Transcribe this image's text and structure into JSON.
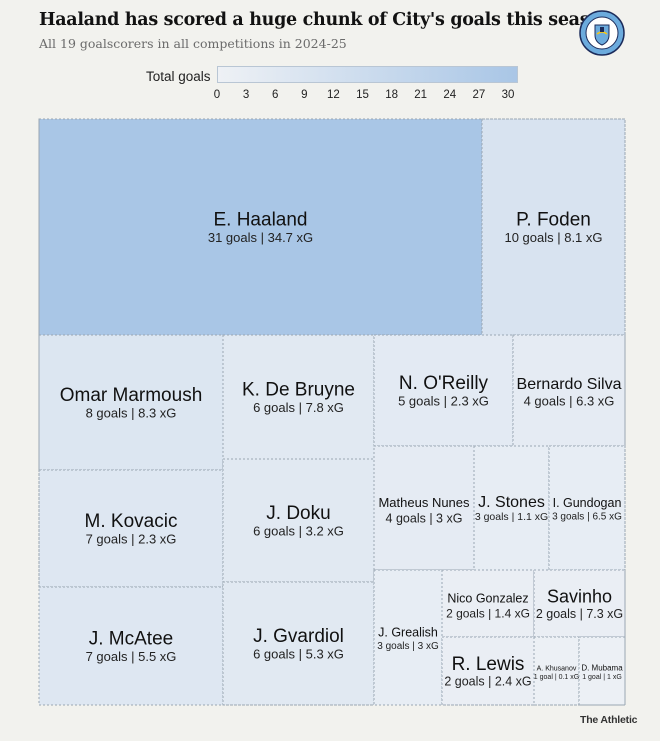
{
  "header": {
    "title": "Haaland has scored a huge chunk of City's goals this season",
    "subtitle": "All 19 goalscorers in all competitions in 2024-25",
    "logo_text": "MANCHESTER CITY"
  },
  "legend": {
    "label": "Total goals",
    "ticks": [
      "0",
      "3",
      "6",
      "9",
      "12",
      "15",
      "18",
      "21",
      "24",
      "27",
      "30"
    ]
  },
  "footer": {
    "source": "The Athletic"
  },
  "colors": {
    "low": "#eef1f5",
    "high": "#a9c6e6",
    "border": "#9aa7b3",
    "background": "#f2f2ee"
  },
  "chart_data": {
    "type": "treemap",
    "title": "Haaland has scored a huge chunk of City's goals this season",
    "color_scale": {
      "label": "Total goals",
      "min": 0,
      "max": 31
    },
    "items": [
      {
        "name": "E. Haaland",
        "goals": 31,
        "xg": 34.7,
        "label": "31 goals | 34.7 xG"
      },
      {
        "name": "P. Foden",
        "goals": 10,
        "xg": 8.1,
        "label": "10 goals | 8.1 xG"
      },
      {
        "name": "Omar Marmoush",
        "goals": 8,
        "xg": 8.3,
        "label": "8 goals | 8.3 xG"
      },
      {
        "name": "M. Kovacic",
        "goals": 7,
        "xg": 2.3,
        "label": "7 goals | 2.3 xG"
      },
      {
        "name": "J. McAtee",
        "goals": 7,
        "xg": 5.5,
        "label": "7 goals | 5.5 xG"
      },
      {
        "name": "K. De Bruyne",
        "goals": 6,
        "xg": 7.8,
        "label": "6 goals | 7.8 xG"
      },
      {
        "name": "J. Doku",
        "goals": 6,
        "xg": 3.2,
        "label": "6 goals | 3.2 xG"
      },
      {
        "name": "J. Gvardiol",
        "goals": 6,
        "xg": 5.3,
        "label": "6 goals | 5.3 xG"
      },
      {
        "name": "N. O'Reilly",
        "goals": 5,
        "xg": 2.3,
        "label": "5 goals | 2.3 xG"
      },
      {
        "name": "Bernardo Silva",
        "goals": 4,
        "xg": 6.3,
        "label": "4 goals | 6.3 xG"
      },
      {
        "name": "Matheus Nunes",
        "goals": 4,
        "xg": 3,
        "label": "4 goals | 3 xG"
      },
      {
        "name": "J. Stones",
        "goals": 3,
        "xg": 1.1,
        "label": "3 goals | 1.1 xG"
      },
      {
        "name": "I. Gundogan",
        "goals": 3,
        "xg": 6.5,
        "label": "3 goals | 6.5 xG"
      },
      {
        "name": "J. Grealish",
        "goals": 3,
        "xg": 3,
        "label": "3 goals | 3 xG"
      },
      {
        "name": "Nico Gonzalez",
        "goals": 2,
        "xg": 1.4,
        "label": "2 goals | 1.4 xG"
      },
      {
        "name": "Savinho",
        "goals": 2,
        "xg": 7.3,
        "label": "2 goals | 7.3 xG"
      },
      {
        "name": "R. Lewis",
        "goals": 2,
        "xg": 2.4,
        "label": "2 goals | 2.4 xG"
      },
      {
        "name": "A. Khusanov",
        "goals": 1,
        "xg": 0.1,
        "label": "1 goal | 0.1 xG"
      },
      {
        "name": "D. Mubama",
        "goals": 1,
        "xg": 1,
        "label": "1 goal | 1 xG"
      }
    ]
  }
}
